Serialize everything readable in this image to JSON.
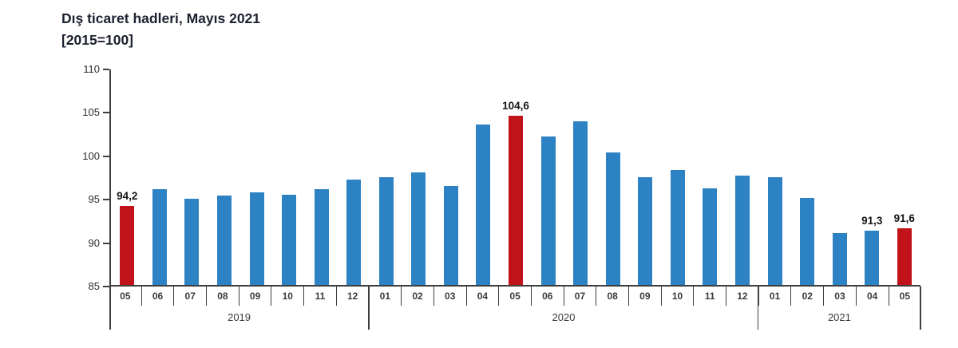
{
  "title": {
    "line1": "Dış ticaret hadleri, Mayıs 2021",
    "line2": "[2015=100]"
  },
  "chart_data": {
    "type": "bar",
    "title": "Dış ticaret hadleri, Mayıs 2021",
    "subtitle": "[2015=100]",
    "ylabel": "",
    "xlabel": "",
    "ylim": [
      85,
      110
    ],
    "yticks": [
      110,
      105,
      100,
      95,
      90,
      85
    ],
    "grid": false,
    "legend": "none",
    "colors": {
      "bar_default": "#2d82c3",
      "bar_highlight": "#c11319",
      "axis": "#3f3f3f",
      "value_label_text": "#141414",
      "tick_label_text": "#3a3a3a",
      "title_text": "#1c2130"
    },
    "years": [
      {
        "label": "2019",
        "month_count": 8
      },
      {
        "label": "2020",
        "month_count": 12
      },
      {
        "label": "2021",
        "month_count": 5
      }
    ],
    "categories": [
      "2019-05",
      "2019-06",
      "2019-07",
      "2019-08",
      "2019-09",
      "2019-10",
      "2019-11",
      "2019-12",
      "2020-01",
      "2020-02",
      "2020-03",
      "2020-04",
      "2020-05",
      "2020-06",
      "2020-07",
      "2020-08",
      "2020-09",
      "2020-10",
      "2020-11",
      "2020-12",
      "2021-01",
      "2021-02",
      "2021-03",
      "2021-04",
      "2021-05"
    ],
    "series": [
      {
        "name": "Dış ticaret hadleri",
        "values": [
          94.2,
          96.1,
          95.0,
          95.4,
          95.7,
          95.5,
          96.1,
          97.2,
          97.5,
          98.1,
          96.5,
          103.6,
          104.6,
          102.2,
          104.0,
          100.4,
          97.5,
          98.3,
          96.2,
          97.7,
          97.5,
          95.1,
          91.0,
          91.3,
          91.6
        ]
      }
    ],
    "points": [
      {
        "year": "2019",
        "month": "05",
        "value": 94.2,
        "highlight": true,
        "label": "94,2"
      },
      {
        "year": "2019",
        "month": "06",
        "value": 96.1,
        "highlight": false,
        "label": ""
      },
      {
        "year": "2019",
        "month": "07",
        "value": 95.0,
        "highlight": false,
        "label": ""
      },
      {
        "year": "2019",
        "month": "08",
        "value": 95.4,
        "highlight": false,
        "label": ""
      },
      {
        "year": "2019",
        "month": "09",
        "value": 95.7,
        "highlight": false,
        "label": ""
      },
      {
        "year": "2019",
        "month": "10",
        "value": 95.5,
        "highlight": false,
        "label": ""
      },
      {
        "year": "2019",
        "month": "11",
        "value": 96.1,
        "highlight": false,
        "label": ""
      },
      {
        "year": "2019",
        "month": "12",
        "value": 97.2,
        "highlight": false,
        "label": ""
      },
      {
        "year": "2020",
        "month": "01",
        "value": 97.5,
        "highlight": false,
        "label": ""
      },
      {
        "year": "2020",
        "month": "02",
        "value": 98.1,
        "highlight": false,
        "label": ""
      },
      {
        "year": "2020",
        "month": "03",
        "value": 96.5,
        "highlight": false,
        "label": ""
      },
      {
        "year": "2020",
        "month": "04",
        "value": 103.6,
        "highlight": false,
        "label": ""
      },
      {
        "year": "2020",
        "month": "05",
        "value": 104.6,
        "highlight": true,
        "label": "104,6"
      },
      {
        "year": "2020",
        "month": "06",
        "value": 102.2,
        "highlight": false,
        "label": ""
      },
      {
        "year": "2020",
        "month": "07",
        "value": 104.0,
        "highlight": false,
        "label": ""
      },
      {
        "year": "2020",
        "month": "08",
        "value": 100.4,
        "highlight": false,
        "label": ""
      },
      {
        "year": "2020",
        "month": "09",
        "value": 97.5,
        "highlight": false,
        "label": ""
      },
      {
        "year": "2020",
        "month": "10",
        "value": 98.3,
        "highlight": false,
        "label": ""
      },
      {
        "year": "2020",
        "month": "11",
        "value": 96.2,
        "highlight": false,
        "label": ""
      },
      {
        "year": "2020",
        "month": "12",
        "value": 97.7,
        "highlight": false,
        "label": ""
      },
      {
        "year": "2021",
        "month": "01",
        "value": 97.5,
        "highlight": false,
        "label": ""
      },
      {
        "year": "2021",
        "month": "02",
        "value": 95.1,
        "highlight": false,
        "label": ""
      },
      {
        "year": "2021",
        "month": "03",
        "value": 91.0,
        "highlight": false,
        "label": ""
      },
      {
        "year": "2021",
        "month": "04",
        "value": 91.3,
        "highlight": false,
        "label": "91,3"
      },
      {
        "year": "2021",
        "month": "05",
        "value": 91.6,
        "highlight": true,
        "label": "91,6"
      }
    ]
  }
}
